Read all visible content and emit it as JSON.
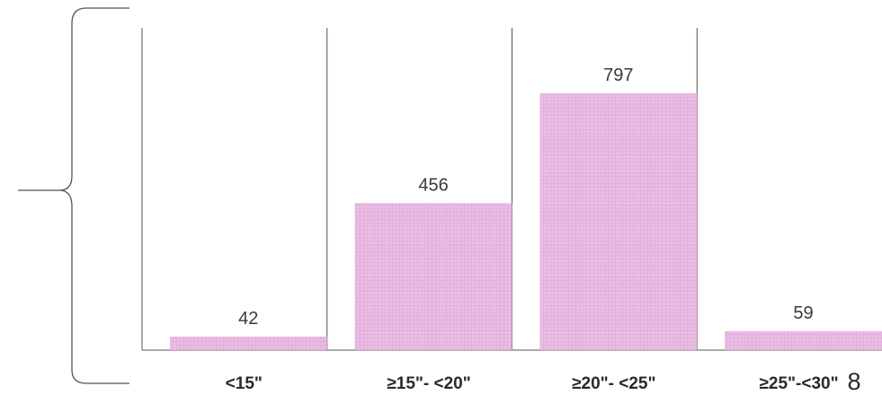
{
  "chart_data": {
    "type": "bar",
    "categories": [
      "<15\"",
      "≥15\"- <20\"",
      "≥20\"- <25\"",
      "≥25\"-<30\""
    ],
    "values": [
      42,
      456,
      797,
      59
    ],
    "ylim": [
      0,
      900
    ],
    "title": "",
    "xlabel": "",
    "ylabel": "",
    "grid": false,
    "bar_color": "#e8b3e0",
    "bar_hatch_color": "#d9a0d3"
  },
  "extra_text": "8"
}
